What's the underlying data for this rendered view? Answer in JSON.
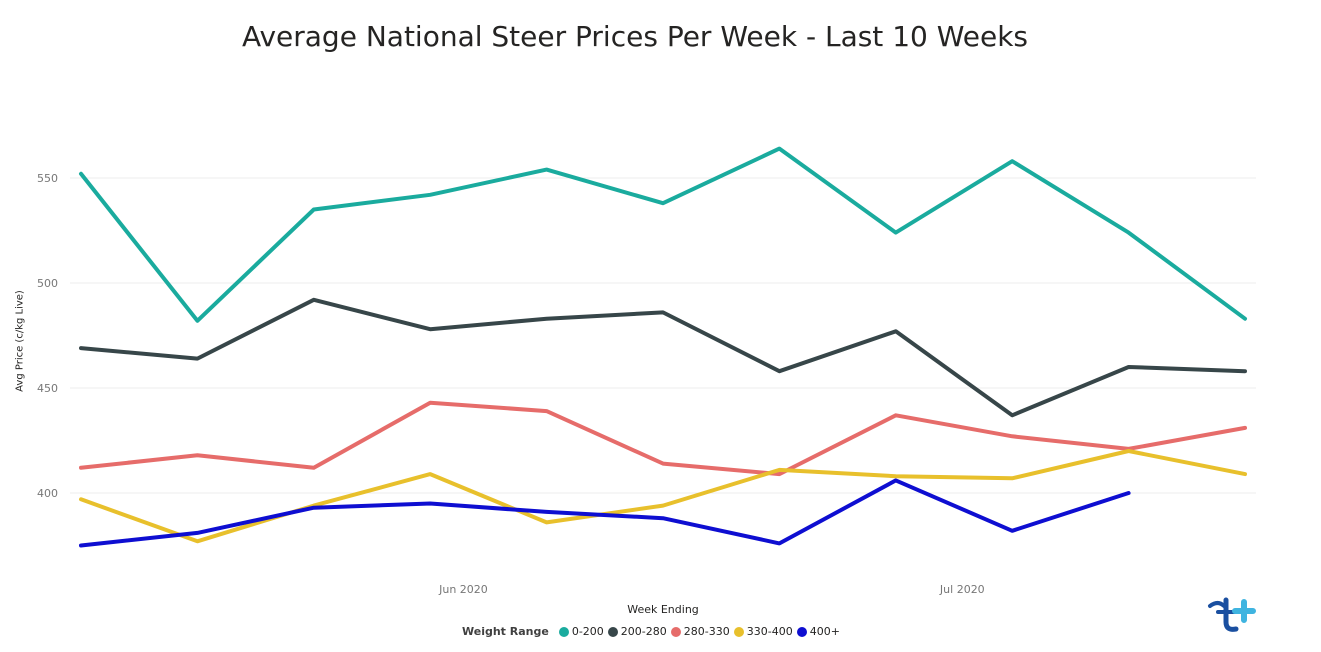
{
  "chart_data": {
    "type": "line",
    "title": "Average National Steer Prices Per Week - Last 10 Weeks",
    "xlabel": "Week Ending",
    "ylabel": "Avg Price (c/kg Live)",
    "x": [
      "2020-05-09",
      "2020-05-16",
      "2020-05-23",
      "2020-05-30",
      "2020-06-06",
      "2020-06-13",
      "2020-06-20",
      "2020-06-27",
      "2020-07-04",
      "2020-07-11",
      "2020-07-18"
    ],
    "x_ticks": [
      "Jun 2020",
      "Jul 2020"
    ],
    "y_ticks": [
      "550",
      "500",
      "450",
      "400"
    ],
    "ylim": [
      364,
      575
    ],
    "grid": "horizontal",
    "legend_title": "Weight Range",
    "legend_position": "bottom",
    "series": [
      {
        "name": "0-200",
        "color": "#1AAB9E",
        "values": [
          552,
          482,
          535,
          542,
          554,
          538,
          564,
          524,
          558,
          524,
          483
        ]
      },
      {
        "name": "200-280",
        "color": "#374649",
        "values": [
          469,
          464,
          492,
          478,
          483,
          486,
          458,
          477,
          437,
          460,
          458
        ]
      },
      {
        "name": "280-330",
        "color": "#E66C6A",
        "values": [
          412,
          418,
          412,
          443,
          439,
          414,
          409,
          437,
          427,
          421,
          431
        ]
      },
      {
        "name": "330-400",
        "color": "#E8C02C",
        "values": [
          397,
          377,
          394,
          409,
          386,
          394,
          411,
          408,
          407,
          420,
          409
        ]
      },
      {
        "name": "400+",
        "color": "#0E0ED1",
        "values": [
          375,
          381,
          393,
          395,
          391,
          388,
          376,
          406,
          382,
          400,
          null
        ]
      }
    ]
  }
}
